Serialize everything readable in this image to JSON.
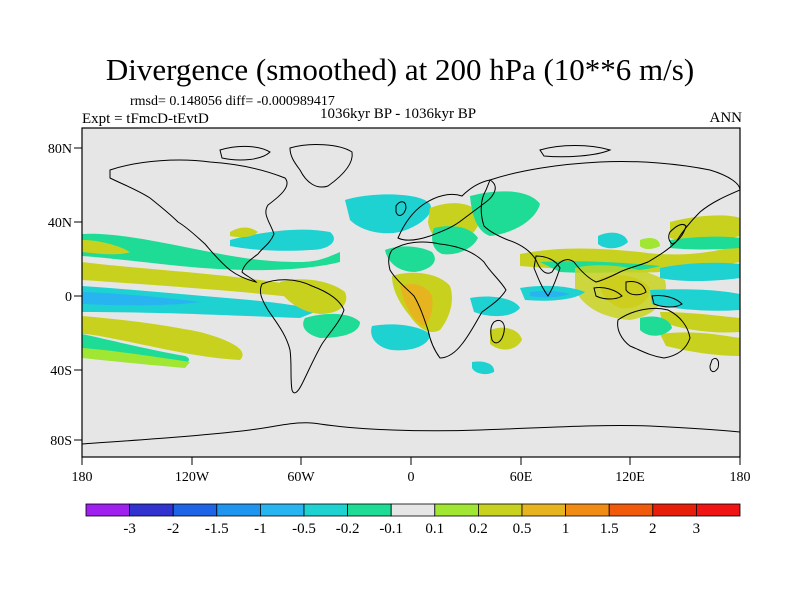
{
  "title": "Divergence (smoothed) at 200 hPa (10**6 m/s)",
  "stats": "rmsd= 0.148056  diff= -0.000989417",
  "experiment": "Expt = tFmcD-tEvtD",
  "period": "1036kyr BP - 1036kyr BP",
  "season": "ANN",
  "axes": {
    "lat_labels": [
      "80N",
      "40N",
      "0",
      "40S",
      "80S"
    ],
    "lon_labels": [
      "180",
      "120W",
      "60W",
      "0",
      "60E",
      "120E",
      "180"
    ]
  },
  "colorbar": {
    "labels": [
      "-3",
      "-2",
      "-1.5",
      "-1",
      "-0.5",
      "-0.2",
      "-0.1",
      "0.1",
      "0.2",
      "0.5",
      "1",
      "1.5",
      "2",
      "3"
    ],
    "colors": [
      "#a020f0",
      "#3232d0",
      "#1e64e6",
      "#1e96f0",
      "#28b4f0",
      "#1ed2d2",
      "#1edc96",
      "#e6e6e6",
      "#a0e632",
      "#c8d21e",
      "#e6b41e",
      "#f08c14",
      "#f05a0a",
      "#e61e0a",
      "#f01414"
    ]
  },
  "colors": {
    "ocean_background": "#e6e6e6",
    "coast": "#000000"
  }
}
